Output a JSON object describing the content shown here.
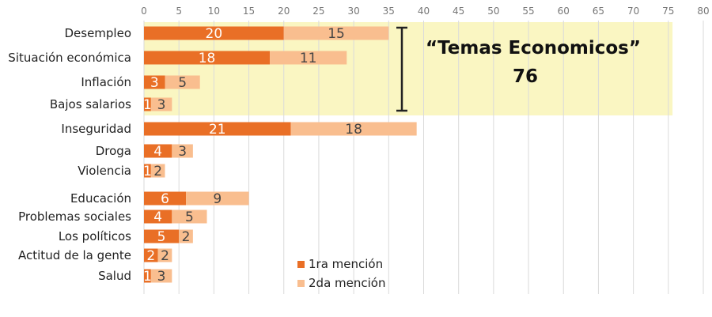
{
  "chart_data": {
    "type": "bar",
    "orientation": "horizontal",
    "stacked": true,
    "categories": [
      "Desempleo",
      "Situación económica",
      "Inflación",
      "Bajos salarios",
      "Inseguridad",
      "Droga",
      "Violencia",
      "Educación",
      "Problemas sociales",
      "Los políticos",
      "Actitud de la gente",
      "Salud"
    ],
    "series": [
      {
        "name": "1ra mención",
        "values": [
          20,
          18,
          3,
          1,
          21,
          4,
          1,
          6,
          4,
          5,
          2,
          1
        ]
      },
      {
        "name": "2da mención",
        "values": [
          15,
          11,
          5,
          3,
          18,
          3,
          2,
          9,
          5,
          2,
          2,
          3
        ]
      }
    ],
    "xlim": [
      0,
      80
    ],
    "xticks": [
      0,
      5,
      10,
      15,
      20,
      25,
      30,
      35,
      40,
      45,
      50,
      55,
      60,
      65,
      70,
      75,
      80
    ],
    "grid": true,
    "legend_position": "bottom-center",
    "annotation": {
      "title": "“Temas Economicos”",
      "value": "76",
      "categories_covered": [
        "Desempleo",
        "Situación económica",
        "Inflación",
        "Bajos salarios"
      ],
      "highlight_extent": [
        0,
        75.6
      ]
    }
  },
  "colors": {
    "series1": "#E96F26",
    "series2": "#F9BE8F",
    "highlight": "#FAF6C2",
    "grid": "#DADADA",
    "series1_label": "#FFFFFF",
    "series2_label": "#444444"
  }
}
